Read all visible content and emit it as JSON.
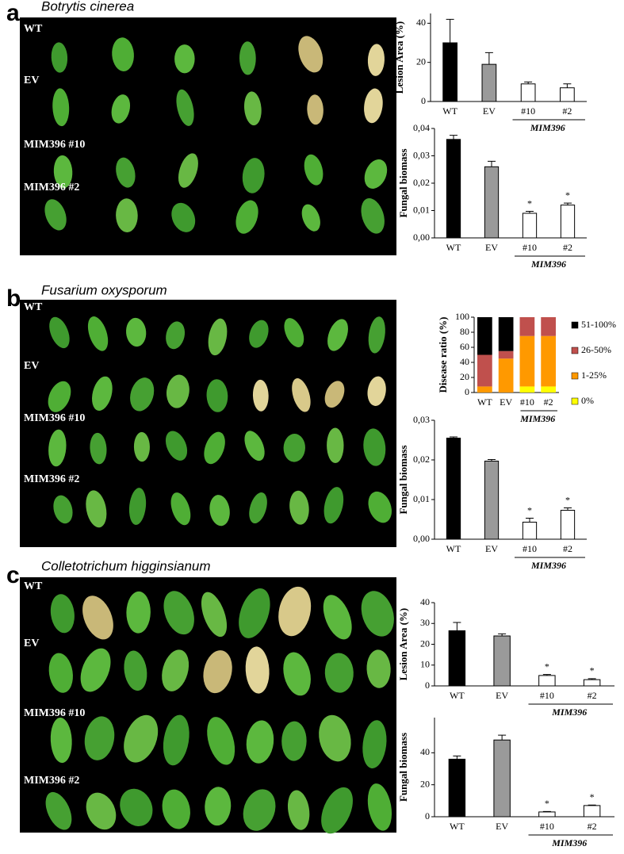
{
  "panels": [
    {
      "letter": "a",
      "title": "Botrytis cinerea",
      "rows": [
        "WT",
        "EV",
        "MIM396 #10",
        "MIM396 #2"
      ]
    },
    {
      "letter": "b",
      "title": "Fusarium oxysporum",
      "rows": [
        "WT",
        "EV",
        "MIM396 #10",
        "MIM396 #2"
      ]
    },
    {
      "letter": "c",
      "title": "Colletotrichum higginsianum",
      "rows": [
        "WT",
        "EV",
        "MIM396 #10",
        "MIM396 #2"
      ]
    }
  ],
  "chart_data": [
    {
      "type": "bar",
      "ylabel": "Lesion Area (%)",
      "categories": [
        "WT",
        "EV",
        "#10",
        "#2"
      ],
      "group_label": "MIM396",
      "values": [
        30,
        19,
        9,
        7
      ],
      "errors": [
        12,
        6,
        1,
        2
      ],
      "colors": [
        "#000000",
        "#9a9a9a",
        "#ffffff",
        "#ffffff"
      ],
      "ylim": [
        0,
        45
      ],
      "yticks": [
        0,
        20,
        40
      ]
    },
    {
      "type": "bar",
      "ylabel": "Fungal biomass",
      "categories": [
        "WT",
        "EV",
        "#10",
        "#2"
      ],
      "group_label": "MIM396",
      "values": [
        0.036,
        0.026,
        0.009,
        0.012
      ],
      "errors": [
        0.0015,
        0.002,
        0.0007,
        0.0007
      ],
      "significance": [
        null,
        null,
        "*",
        "*"
      ],
      "colors": [
        "#000000",
        "#9a9a9a",
        "#ffffff",
        "#ffffff"
      ],
      "ylim": [
        0,
        0.04
      ],
      "yticks": [
        {
          "value": 0,
          "label": "0,00"
        },
        {
          "value": 0.01,
          "label": "0,01"
        },
        {
          "value": 0.02,
          "label": "0,02"
        },
        {
          "value": 0.03,
          "label": "0,03"
        },
        {
          "value": 0.04,
          "label": "0,04"
        }
      ]
    },
    {
      "type": "stacked_bar",
      "ylabel": "Disease ratio (%)",
      "categories": [
        "WT",
        "EV",
        "#10",
        "#2"
      ],
      "group_label": "MIM396",
      "series": [
        {
          "name": "0%",
          "color": "#ffff00",
          "values": [
            0,
            0,
            8,
            8
          ]
        },
        {
          "name": "1-25%",
          "color": "#ff9900",
          "values": [
            8,
            45,
            67,
            67
          ]
        },
        {
          "name": "26-50%",
          "color": "#c0504d",
          "values": [
            42,
            10,
            25,
            25
          ]
        },
        {
          "name": "51-100%",
          "color": "#000000",
          "values": [
            50,
            45,
            0,
            0
          ]
        }
      ],
      "ylim": [
        0,
        100
      ],
      "yticks": [
        0,
        20,
        40,
        60,
        80,
        100
      ]
    },
    {
      "type": "bar",
      "ylabel": "Fungal biomass",
      "categories": [
        "WT",
        "EV",
        "#10",
        "#2"
      ],
      "group_label": "MIM396",
      "values": [
        0.0255,
        0.0197,
        0.0043,
        0.0073
      ],
      "errors": [
        0.0003,
        0.0004,
        0.001,
        0.0006
      ],
      "significance": [
        null,
        null,
        "*",
        "*"
      ],
      "colors": [
        "#000000",
        "#9a9a9a",
        "#ffffff",
        "#ffffff"
      ],
      "ylim": [
        0,
        0.03
      ],
      "yticks": [
        {
          "value": 0,
          "label": "0,00"
        },
        {
          "value": 0.01,
          "label": "0,01"
        },
        {
          "value": 0.02,
          "label": "0,02"
        },
        {
          "value": 0.03,
          "label": "0,03"
        }
      ]
    },
    {
      "type": "bar",
      "ylabel": "Lesion Area (%)",
      "categories": [
        "WT",
        "EV",
        "#10",
        "#2"
      ],
      "group_label": "MIM396",
      "values": [
        26.5,
        24,
        5,
        3
      ],
      "errors": [
        4,
        1,
        0.5,
        0.5
      ],
      "significance": [
        null,
        null,
        "*",
        "*"
      ],
      "colors": [
        "#000000",
        "#9a9a9a",
        "#ffffff",
        "#ffffff"
      ],
      "ylim": [
        0,
        40
      ],
      "yticks": [
        0,
        10,
        20,
        30,
        40
      ]
    },
    {
      "type": "bar",
      "ylabel": "Fungal biomass",
      "categories": [
        "WT",
        "EV",
        "#10",
        "#2"
      ],
      "group_label": "MIM396",
      "values": [
        36,
        48,
        3,
        7
      ],
      "errors": [
        2,
        3,
        0.3,
        0.3
      ],
      "significance": [
        null,
        null,
        "*",
        "*"
      ],
      "colors": [
        "#000000",
        "#9a9a9a",
        "#ffffff",
        "#ffffff"
      ],
      "ylim": [
        0,
        62
      ],
      "yticks": [
        0,
        20,
        40
      ]
    }
  ]
}
